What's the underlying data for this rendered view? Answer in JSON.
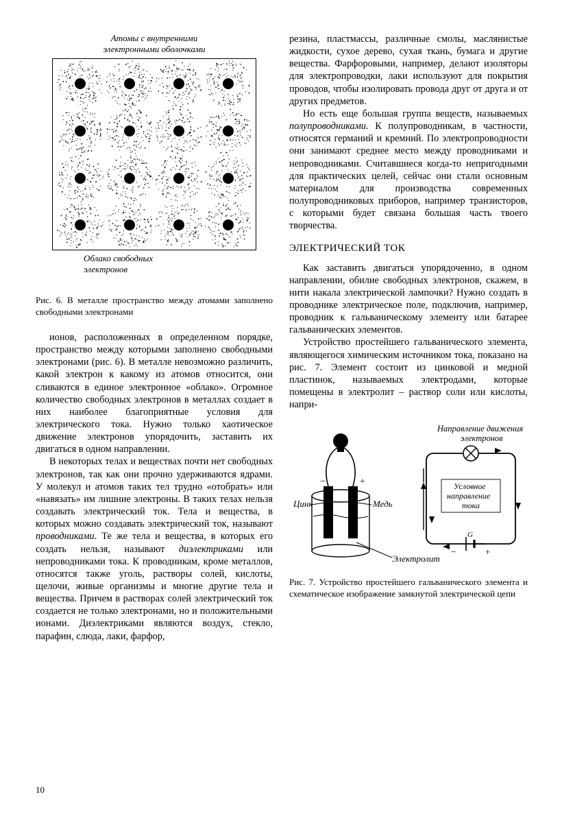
{
  "figure6": {
    "label_top_l1": "Атомы с внутренними",
    "label_top_l2": "электронными оболочками",
    "label_bottom_l1": "Облако свободных",
    "label_bottom_l2": "электронов",
    "caption": "Рис. 6. В металле пространство между атомами заполнено свободными электронами",
    "grid_rows": 4,
    "grid_cols": 4,
    "atom_color": "#000000",
    "dot_color": "#000000",
    "box_border": "#000000"
  },
  "col_left": {
    "p1": "ионов, расположенных в определенном порядке, пространство между которыми заполнено свободными электронами (рис. 6). В металле невозможно различить, какой электрон к какому из атомов относится, они сливаются в единое электронное «облако». Огромное количество свободных электронов в металлах создает в них наиболее благоприятные условия для электрического тока. Нужно только хаотическое движение электронов упорядочить, заставить их двигаться в одном направлении.",
    "p2_a": "В некоторых телах и веществах почти нет свободных электронов, так как они прочно удерживаются ядрами. У молекул и атомов таких тел трудно «отобрать» или «навязать» им лишние электроны. В таких телах нельзя создавать электрический ток. Тела и вещества, в которых можно создавать электрический ток, называют ",
    "p2_term1": "проводниками",
    "p2_b": ". Те же тела и вещества, в которых его создать нельзя, называют ",
    "p2_term2": "диэлектриками",
    "p2_c": " или непроводниками тока. К проводникам, кроме металлов, относятся также уголь, растворы солей, кислоты, щелочи, живые организмы и многие другие тела и вещества. Причем в растворах солей электрический ток создается не только электронами, но и положительными ионами. Диэлектриками являются воздух, стекло, парафин, слюда, лаки, фарфор,"
  },
  "col_right": {
    "p1": "резина, пластмассы, различные смолы, маслянистые жидкости, сухое дерево, сухая ткань, бумага и другие вещества. Фарфоровыми, например, делают изоляторы для электропроводки, лаки используют для покрытия проводов, чтобы изолировать провода друг от друга и от других предметов.",
    "p2_a": "Но есть еще большая группа веществ, называемых ",
    "p2_term": "полупроводниками",
    "p2_b": ". К полупроводникам, в частности, относятся германий и кремний. По электропроводности они занимают среднее место между проводниками и непроводниками. Считавшиеся когда-то непригодными для практических целей, сейчас они стали основным материалом для производства современных полупроводниковых приборов, например транзисторов, с которыми будет связана большая часть твоего творчества.",
    "section_title": "ЭЛЕКТРИЧЕСКИЙ ТОК",
    "p3": "Как заставить двигаться упорядоченно, в одном направлении, обилие свободных электронов, скажем, в нити накала электрической лампочки? Нужно создать в проводнике электрическое поле, подключив, например, проводник к гальваническому элементу или батарее гальванических элементов.",
    "p4": "Устройство простейшего гальванического элемента, являющегося химическим источником тока, показано на рис. 7. Элемент состоит из цинковой и медной пластинок, называемых электродами, которые помещены в электролит – раствор соли или кислоты, напри-"
  },
  "figure7": {
    "labels": {
      "zinc": "Цинк",
      "copper": "Медь",
      "electrolyte": "Электролит",
      "electron_dir_l1": "Направление движения",
      "electron_dir_l2": "электронов",
      "conv_dir_l1": "Условное",
      "conv_dir_l2": "направление",
      "conv_dir_l3": "тока",
      "battery": "G"
    },
    "caption": "Рис. 7. Устройство простейшего гальванического элемента и схематическое изображение замкнутой электрической цепи",
    "colors": {
      "stroke": "#000000",
      "fill_dark": "#000000",
      "fill_white": "#ffffff"
    }
  },
  "page_number": "10"
}
